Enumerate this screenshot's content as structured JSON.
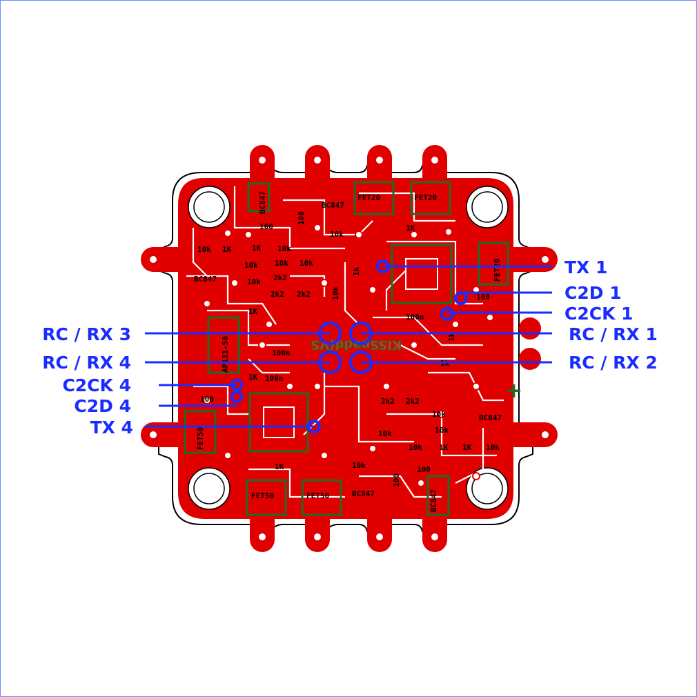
{
  "colors": {
    "copper": "#e00000",
    "silkscreen_green": "#1f6a24",
    "board_outline": "#000000",
    "label_blue": "#1a2cff",
    "background": "#ffffff"
  },
  "board": {
    "brand_text": "KISSpadd(VS",
    "power_symbol": "+",
    "component_labels": [
      "BC847",
      "BC847",
      "BC847",
      "BC847",
      "BC847",
      "BC847",
      "FET20",
      "FET20",
      "FET20",
      "FET50",
      "FET50",
      "FET50",
      "AP131-50",
      "10k",
      "10k",
      "10k",
      "10k",
      "10k",
      "10k",
      "10k",
      "10k",
      "10k",
      "10k",
      "10k",
      "10k",
      "10k",
      "10k",
      "1K",
      "1K",
      "1K",
      "1K",
      "1K",
      "1K",
      "1K",
      "1K",
      "1k",
      "1k",
      "1k",
      "2k2",
      "2k2",
      "2k2",
      "2k2",
      "2k2",
      "100",
      "100",
      "100",
      "100",
      "100",
      "100",
      "100n",
      "100n",
      "100n"
    ]
  },
  "pin_labels": {
    "tx1": "TX 1",
    "c2d1": "C2D 1",
    "c2ck1": "C2CK 1",
    "rcrx1": "RC / RX 1",
    "rcrx2": "RC / RX 2",
    "rcrx3": "RC / RX 3",
    "rcrx4": "RC / RX 4",
    "c2ck4": "C2CK 4",
    "c2d4": "C2D 4",
    "tx4": "TX 4"
  }
}
